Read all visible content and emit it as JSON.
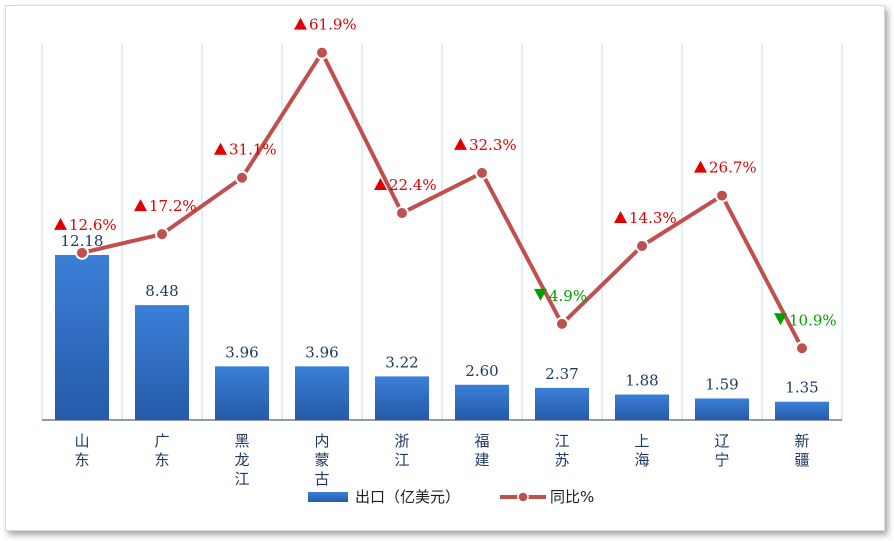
{
  "chart_data": {
    "type": "bar",
    "categories": [
      [
        "山",
        "东"
      ],
      [
        "广",
        "东"
      ],
      [
        "黑",
        "龙",
        "江"
      ],
      [
        "内",
        "蒙",
        "古"
      ],
      [
        "浙",
        "江"
      ],
      [
        "福",
        "建"
      ],
      [
        "江",
        "苏"
      ],
      [
        "上",
        "海"
      ],
      [
        "辽",
        "宁"
      ],
      [
        "新",
        "疆"
      ]
    ],
    "series": [
      {
        "name": "出口（亿美元）",
        "type": "bar",
        "values": [
          12.18,
          8.48,
          3.96,
          3.96,
          3.22,
          2.6,
          2.37,
          1.88,
          1.59,
          1.35
        ],
        "labels": [
          "12.18",
          "8.48",
          "3.96",
          "3.96",
          "3.22",
          "2.60",
          "2.37",
          "1.88",
          "1.59",
          "1.35"
        ],
        "color": "#2e6bc4"
      },
      {
        "name": "同比%",
        "type": "line",
        "values": [
          12.6,
          17.2,
          31.1,
          61.9,
          22.4,
          32.3,
          -4.9,
          14.3,
          26.7,
          -10.9
        ],
        "labels": [
          "12.6%",
          "17.2%",
          "31.1%",
          "61.9%",
          "22.4%",
          "32.3%",
          "4.9%",
          "14.3%",
          "26.7%",
          "10.9%"
        ],
        "color": "#c0504d"
      }
    ],
    "colors": {
      "up": "#e00000",
      "down": "#00a000"
    },
    "grid": "vertical",
    "legend": "bottom"
  }
}
